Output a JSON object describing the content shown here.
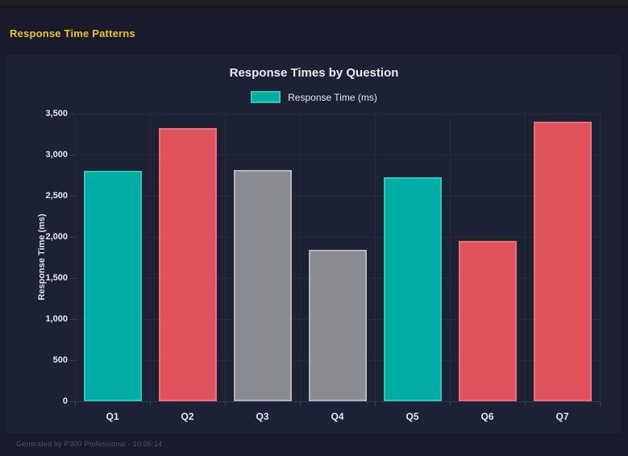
{
  "window": {
    "header_title": "Response Time Patterns"
  },
  "footer": {
    "text": "Generated by P300 Professional - 10:05:14"
  },
  "chart_data": {
    "type": "bar",
    "title": "Response Times by Question",
    "legend": [
      {
        "label": "Response Time (ms)",
        "color": "#00ada4"
      }
    ],
    "legend_position": "top",
    "categories": [
      "Q1",
      "Q2",
      "Q3",
      "Q4",
      "Q5",
      "Q6",
      "Q7"
    ],
    "series": [
      {
        "name": "Response Time (ms)",
        "values": [
          2800,
          3325,
          2810,
          1845,
          2725,
          1955,
          3400
        ]
      }
    ],
    "bar_colors": [
      "#00ada4",
      "#e0525c",
      "#8a8b90",
      "#8a8b90",
      "#00ada4",
      "#e0525c",
      "#e0525c"
    ],
    "bar_border_colors": [
      "#2bc7ba",
      "#ec6e76",
      "#b4b5ba",
      "#b4b5ba",
      "#2bc7ba",
      "#ec6e76",
      "#ec6e76"
    ],
    "xlabel": "",
    "ylabel": "Response Time (ms)",
    "ylim": [
      0,
      3500
    ],
    "ytick_step": 500,
    "ytick_labels": [
      "0",
      "500",
      "1,000",
      "1,500",
      "2,000",
      "2,500",
      "3,000",
      "3,500"
    ],
    "grid": true
  },
  "colors": {
    "accent_yellow": "#edc41c",
    "teal": "#00ada4",
    "red": "#e0525c",
    "gray": "#8a8b90",
    "gridline": "#262b40",
    "panel_bg": "#1c2134",
    "page_bg": "#171b2a",
    "topbar_bg": "#1e1e1f"
  }
}
